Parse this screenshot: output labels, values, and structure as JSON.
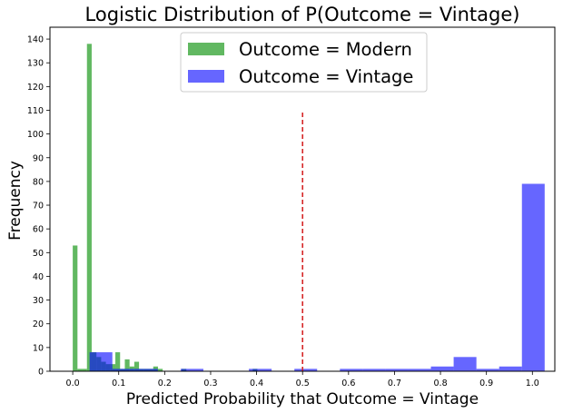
{
  "chart_data": {
    "type": "bar",
    "title": "Logistic Distribution of P(Outcome = Vintage)",
    "xlabel": "Predicted Probability that Outcome = Vintage",
    "ylabel": "Frequency",
    "xlim": [
      -0.0496,
      1.0488
    ],
    "ylim": [
      0,
      145
    ],
    "xticks": [
      "0.0",
      "0.1",
      "0.2",
      "0.3",
      "0.4",
      "0.5",
      "0.6",
      "0.7",
      "0.8",
      "0.9",
      "1.0"
    ],
    "yticks": [
      "0",
      "10",
      "20",
      "30",
      "40",
      "50",
      "60",
      "70",
      "80",
      "90",
      "100",
      "110",
      "120",
      "130",
      "140"
    ],
    "legend_position": "upper center",
    "threshold_line": {
      "x": 0.5,
      "y_from": 0,
      "y_to": 110,
      "color": "#d62728",
      "style": "dashed"
    },
    "series": [
      {
        "name": "Outcome = Modern",
        "color": "#2ca02c",
        "opacity": 0.75,
        "bin_width": 0.0103,
        "bins": [
          {
            "x": 0.0,
            "value": 53
          },
          {
            "x": 0.0103,
            "value": 1
          },
          {
            "x": 0.0206,
            "value": 1
          },
          {
            "x": 0.0309,
            "value": 138
          },
          {
            "x": 0.0412,
            "value": 8
          },
          {
            "x": 0.0515,
            "value": 6
          },
          {
            "x": 0.0618,
            "value": 4
          },
          {
            "x": 0.0721,
            "value": 3
          },
          {
            "x": 0.0824,
            "value": 3
          },
          {
            "x": 0.0927,
            "value": 8
          },
          {
            "x": 0.103,
            "value": 1
          },
          {
            "x": 0.1133,
            "value": 5
          },
          {
            "x": 0.1236,
            "value": 2
          },
          {
            "x": 0.1339,
            "value": 4
          },
          {
            "x": 0.1442,
            "value": 1
          },
          {
            "x": 0.1545,
            "value": 1
          },
          {
            "x": 0.1648,
            "value": 1
          },
          {
            "x": 0.1751,
            "value": 2
          },
          {
            "x": 0.1854,
            "value": 1
          },
          {
            "x": 0.2369,
            "value": 1
          },
          {
            "x": 0.3914,
            "value": 1
          }
        ]
      },
      {
        "name": "Outcome = Vintage",
        "color": "#0000ff",
        "opacity": 0.6,
        "bin_width": 0.0495,
        "bins": [
          {
            "x": 0.0367,
            "value": 8
          },
          {
            "x": 0.0862,
            "value": 1
          },
          {
            "x": 0.1357,
            "value": 1
          },
          {
            "x": 0.2347,
            "value": 1
          },
          {
            "x": 0.3832,
            "value": 1
          },
          {
            "x": 0.4822,
            "value": 1
          },
          {
            "x": 0.5812,
            "value": 1
          },
          {
            "x": 0.6307,
            "value": 1
          },
          {
            "x": 0.6802,
            "value": 1
          },
          {
            "x": 0.7297,
            "value": 1
          },
          {
            "x": 0.7792,
            "value": 2
          },
          {
            "x": 0.8287,
            "value": 6
          },
          {
            "x": 0.8782,
            "value": 1
          },
          {
            "x": 0.9277,
            "value": 2
          },
          {
            "x": 0.9772,
            "value": 79
          }
        ]
      }
    ]
  }
}
